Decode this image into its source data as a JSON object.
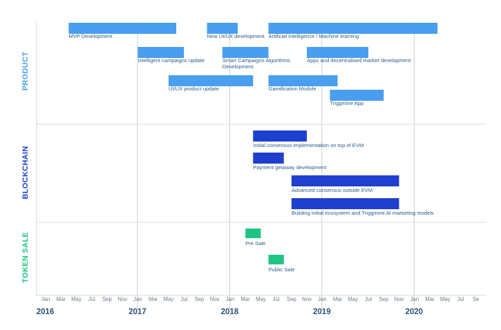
{
  "chart_data": {
    "type": "gantt",
    "x_range": [
      "2016-01",
      "2020-09"
    ],
    "colors": {
      "product": "#4a9eef",
      "blockchain": "#1f3fcf",
      "token_sale": "#1fc483",
      "grid": "#c9d3dd",
      "year_line": "#b8c3ce"
    },
    "sections": [
      {
        "name": "PRODUCT",
        "color": "#4a9eef",
        "tasks": [
          {
            "label": "MVP Development",
            "start": "2016-04",
            "end": "2017-06",
            "row": 0
          },
          {
            "label": "New UI/UX development",
            "start": "2017-10",
            "end": "2018-02",
            "row": 0
          },
          {
            "label": "Artificial intelligence / Machine learning",
            "start": "2018-06",
            "end": "2020-04",
            "row": 0
          },
          {
            "label": "Intelligent campaigns update",
            "start": "2017-01",
            "end": "2017-07",
            "row": 1
          },
          {
            "label": "Smart Campaigns Algorithms",
            "label_line2": "Development",
            "start": "2017-12",
            "end": "2018-06",
            "row": 1
          },
          {
            "label": "Apps and decentralised market development",
            "start": "2018-11",
            "end": "2019-07",
            "row": 1
          },
          {
            "label": "UI/UX product update",
            "start": "2017-05",
            "end": "2018-04",
            "row": 2
          },
          {
            "label": "Gamification Module",
            "start": "2018-06",
            "end": "2019-03",
            "row": 2
          },
          {
            "label": "Triggmine App",
            "start": "2019-02",
            "end": "2019-09",
            "row": 3
          }
        ]
      },
      {
        "name": "BLOCKCHAIN",
        "color": "#1f3fcf",
        "tasks": [
          {
            "label": "Initial consensus implementation on top of EVM",
            "start": "2018-04",
            "end": "2018-11",
            "row": 0
          },
          {
            "label": "Payment getaway development",
            "start": "2018-04",
            "end": "2018-08",
            "row": 1
          },
          {
            "label": "Advanced consensus outside EVM",
            "start": "2018-09",
            "end": "2019-11",
            "row": 2
          },
          {
            "label": "Building initial ecosystem and Triggmine AI marketing models",
            "start": "2018-09",
            "end": "2019-11",
            "row": 3
          }
        ]
      },
      {
        "name": "TOKEN SALE",
        "color": "#1fc483",
        "tasks": [
          {
            "label": "Pre Sale",
            "start": "2018-03",
            "end": "2018-05",
            "row": 0
          },
          {
            "label": "Public Sale",
            "start": "2018-06",
            "end": "2018-08",
            "row": 1
          }
        ]
      }
    ],
    "month_ticks": [
      "Jan",
      "Mar",
      "May",
      "Jul",
      "Sep",
      "Nov",
      "Jan",
      "Mar",
      "May",
      "Jul",
      "Sep",
      "Nov",
      "Jan",
      "Mar",
      "May",
      "Jul",
      "Sep",
      "Nov",
      "Jan",
      "Mar",
      "May",
      "Jul",
      "Sep",
      "Nov",
      "Jan",
      "Mar",
      "May",
      "Jul",
      "Se"
    ],
    "year_ticks": [
      "2016",
      "2017",
      "2018",
      "2019",
      "2020"
    ]
  }
}
